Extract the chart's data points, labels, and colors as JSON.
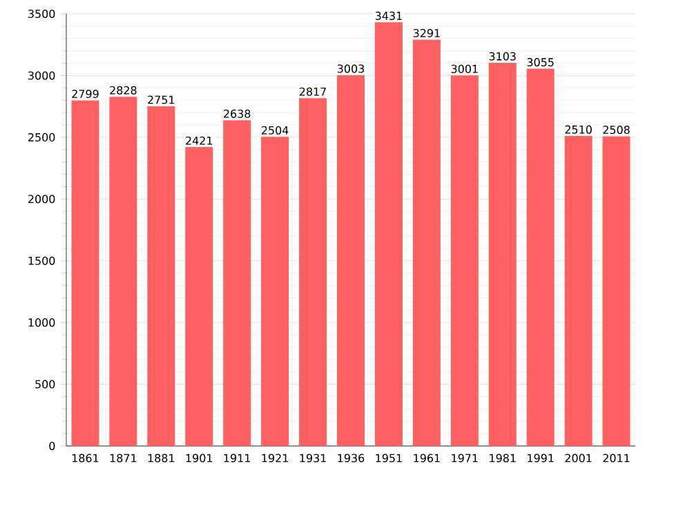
{
  "chart_data": {
    "type": "bar",
    "categories": [
      "1861",
      "1871",
      "1881",
      "1901",
      "1911",
      "1921",
      "1931",
      "1936",
      "1951",
      "1961",
      "1971",
      "1981",
      "1991",
      "2001",
      "2011"
    ],
    "values": [
      2799,
      2828,
      2751,
      2421,
      2638,
      2504,
      2817,
      3003,
      3431,
      3291,
      3001,
      3103,
      3055,
      2510,
      2508
    ],
    "color": "#ff6060",
    "ylim": [
      0,
      3500
    ],
    "yticks": [
      0,
      500,
      1000,
      1500,
      2000,
      2500,
      3000,
      3500
    ],
    "grid": "y",
    "data_labels": true
  }
}
